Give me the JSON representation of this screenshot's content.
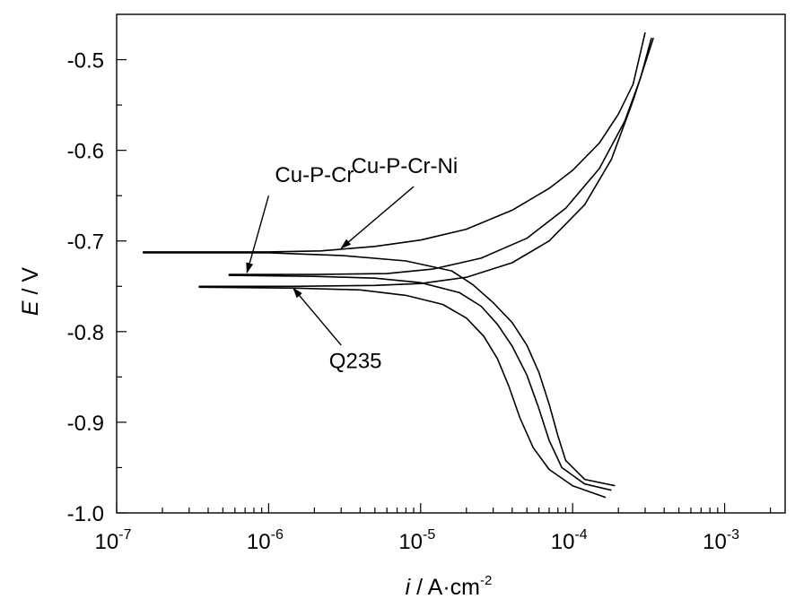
{
  "chart_data": {
    "type": "line",
    "title": "",
    "x_scale": "log",
    "xlim": [
      1e-07,
      0.0025
    ],
    "ylim": [
      -1.0,
      -0.45
    ],
    "x_ticks": [
      {
        "base": "10",
        "exp": "-7",
        "value": 1e-07
      },
      {
        "base": "10",
        "exp": "-6",
        "value": 1e-06
      },
      {
        "base": "10",
        "exp": "-5",
        "value": 1e-05
      },
      {
        "base": "10",
        "exp": "-4",
        "value": 0.0001
      },
      {
        "base": "10",
        "exp": "-3",
        "value": 0.001
      }
    ],
    "y_ticks": [
      {
        "label": "-0.5",
        "value": -0.5
      },
      {
        "label": "-0.6",
        "value": -0.6
      },
      {
        "label": "-0.7",
        "value": -0.7
      },
      {
        "label": "-0.8",
        "value": -0.8
      },
      {
        "label": "-0.9",
        "value": -0.9
      },
      {
        "label": "-1.0",
        "value": -1.0
      }
    ],
    "xlabel": {
      "italic": "i",
      "text": " / A·cm",
      "sup": "-2"
    },
    "ylabel": {
      "italic": "E",
      "text": " / V"
    },
    "series": [
      {
        "name": "Cu-P-Cr-Ni",
        "anodic": [
          [
            1.5e-07,
            -0.712
          ],
          [
            1e-06,
            -0.712
          ],
          [
            2.2e-06,
            -0.711
          ],
          [
            5e-06,
            -0.706
          ],
          [
            1e-05,
            -0.699
          ],
          [
            2e-05,
            -0.687
          ],
          [
            4e-05,
            -0.666
          ],
          [
            7e-05,
            -0.642
          ],
          [
            0.0001,
            -0.622
          ],
          [
            0.00015,
            -0.592
          ],
          [
            0.0002,
            -0.56
          ],
          [
            0.00025,
            -0.527
          ],
          [
            0.0003,
            -0.47
          ]
        ],
        "cathodic": [
          [
            1.5e-07,
            -0.713
          ],
          [
            1e-06,
            -0.713
          ],
          [
            3e-06,
            -0.716
          ],
          [
            8e-06,
            -0.722
          ],
          [
            1.6e-05,
            -0.733
          ],
          [
            2.2e-05,
            -0.748
          ],
          [
            3e-05,
            -0.768
          ],
          [
            4e-05,
            -0.79
          ],
          [
            5e-05,
            -0.815
          ],
          [
            6e-05,
            -0.845
          ],
          [
            7e-05,
            -0.88
          ],
          [
            8e-05,
            -0.915
          ],
          [
            9e-05,
            -0.942
          ],
          [
            0.00012,
            -0.963
          ],
          [
            0.00019,
            -0.97
          ]
        ]
      },
      {
        "name": "Cu-P-Cr",
        "anodic": [
          [
            5.5e-07,
            -0.737
          ],
          [
            2e-06,
            -0.737
          ],
          [
            6e-06,
            -0.736
          ],
          [
            1.2e-05,
            -0.731
          ],
          [
            2.5e-05,
            -0.719
          ],
          [
            5e-05,
            -0.697
          ],
          [
            9e-05,
            -0.664
          ],
          [
            0.00015,
            -0.62
          ],
          [
            0.00022,
            -0.568
          ],
          [
            0.00028,
            -0.52
          ],
          [
            0.00033,
            -0.476
          ]
        ],
        "cathodic": [
          [
            5.5e-07,
            -0.738
          ],
          [
            2e-06,
            -0.739
          ],
          [
            5e-06,
            -0.741
          ],
          [
            1e-05,
            -0.746
          ],
          [
            1.8e-05,
            -0.757
          ],
          [
            2.5e-05,
            -0.772
          ],
          [
            3.2e-05,
            -0.792
          ],
          [
            4e-05,
            -0.816
          ],
          [
            5e-05,
            -0.848
          ],
          [
            6e-05,
            -0.885
          ],
          [
            7e-05,
            -0.92
          ],
          [
            8.5e-05,
            -0.95
          ],
          [
            0.00012,
            -0.968
          ],
          [
            0.00018,
            -0.975
          ]
        ]
      },
      {
        "name": "Q235",
        "anodic": [
          [
            3.5e-07,
            -0.75
          ],
          [
            1.5e-06,
            -0.75
          ],
          [
            5e-06,
            -0.749
          ],
          [
            1e-05,
            -0.747
          ],
          [
            2e-05,
            -0.74
          ],
          [
            4e-05,
            -0.724
          ],
          [
            7e-05,
            -0.7
          ],
          [
            0.00012,
            -0.66
          ],
          [
            0.00018,
            -0.61
          ],
          [
            0.00025,
            -0.545
          ],
          [
            0.00034,
            -0.476
          ]
        ],
        "cathodic": [
          [
            3.5e-07,
            -0.751
          ],
          [
            1.5e-06,
            -0.752
          ],
          [
            4e-06,
            -0.754
          ],
          [
            8e-06,
            -0.76
          ],
          [
            1.4e-05,
            -0.77
          ],
          [
            2e-05,
            -0.785
          ],
          [
            2.6e-05,
            -0.805
          ],
          [
            3.2e-05,
            -0.83
          ],
          [
            3.8e-05,
            -0.86
          ],
          [
            4.5e-05,
            -0.895
          ],
          [
            5.5e-05,
            -0.928
          ],
          [
            7e-05,
            -0.952
          ],
          [
            0.0001,
            -0.97
          ],
          [
            0.000165,
            -0.983
          ]
        ]
      }
    ],
    "annotations": [
      {
        "text": "Cu-P-Cr-Ni",
        "text_at": [
          3.5e-06,
          -0.625
        ],
        "arrow_from": [
          9e-06,
          -0.64
        ],
        "arrow_to": [
          3e-06,
          -0.708
        ]
      },
      {
        "text": "Cu-P-Cr",
        "text_at": [
          1.1e-06,
          -0.635
        ],
        "arrow_from": [
          1e-06,
          -0.65
        ],
        "arrow_to": [
          7.2e-07,
          -0.735
        ]
      },
      {
        "text": "Q235",
        "text_at": [
          2.5e-06,
          -0.84
        ],
        "arrow_from": [
          3e-06,
          -0.815
        ],
        "arrow_to": [
          1.45e-06,
          -0.752
        ]
      }
    ]
  }
}
